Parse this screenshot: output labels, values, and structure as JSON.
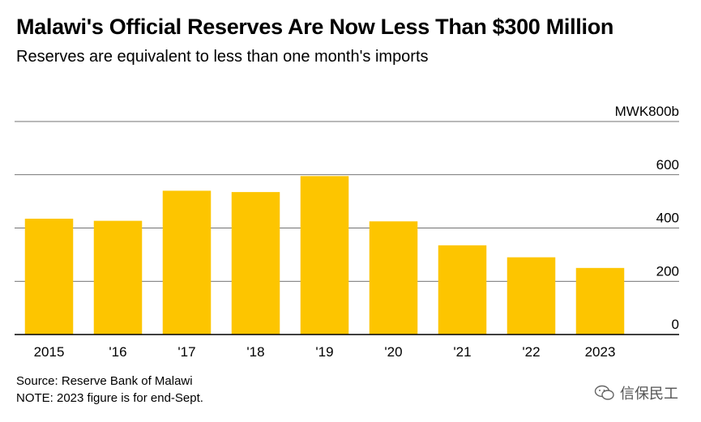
{
  "header": {
    "title": "Malawi's Official Reserves Are Now Less Than $300 Million",
    "subtitle": "Reserves are equivalent to less than one month's imports"
  },
  "footer": {
    "source": "Source: Reserve Bank of Malawi",
    "note": "NOTE: 2023 figure is for end-Sept."
  },
  "watermark": {
    "text": "信保民工",
    "icon": "wechat-icon"
  },
  "colors": {
    "bar": "#FDC500",
    "grid": "#444444",
    "axis": "#000000"
  },
  "chart_data": {
    "type": "bar",
    "categories": [
      "2015",
      "'16",
      "'17",
      "'18",
      "'19",
      "'20",
      "'21",
      "'22",
      "2023"
    ],
    "values": [
      435,
      427,
      540,
      535,
      595,
      425,
      335,
      290,
      250
    ],
    "unit_label": "MWK800b",
    "ylim": [
      0,
      800
    ],
    "yticks": [
      0,
      200,
      400,
      600,
      800
    ],
    "ytick_labels": [
      "0",
      "200",
      "400",
      "600",
      "MWK800b"
    ],
    "grid": true,
    "y_axis_position": "right"
  }
}
